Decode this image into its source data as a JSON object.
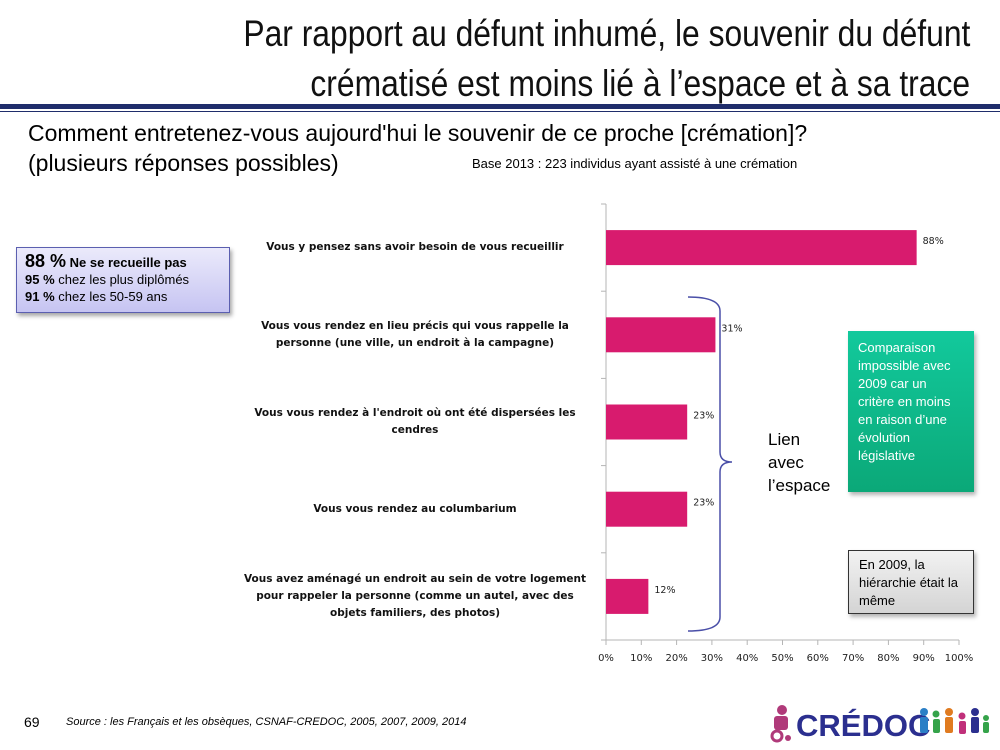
{
  "title": {
    "line1": "Par rapport au défunt inhumé, le souvenir du défunt",
    "line2": "crématisé est moins lié à l’espace et à sa trace"
  },
  "question": {
    "line1": "Comment entretenez-vous aujourd'hui le souvenir de ce proche [crémation]?",
    "line2": "(plusieurs réponses possibles)"
  },
  "base_note": "Base 2013 : 223 individus ayant assisté à une crémation",
  "stats_box": {
    "line1_value": "88 %",
    "line1_text": "Ne se recueille pas",
    "line2_value": "95 %",
    "line2_text": "chez les plus diplômés",
    "line3_value": "91 %",
    "line3_text": "chez les 50-59 ans"
  },
  "chart_data": {
    "type": "bar",
    "orientation": "horizontal",
    "categories": [
      "Vous y pensez sans avoir besoin de vous recueillir",
      "Vous vous rendez en lieu précis qui vous rappelle la personne (une ville, un endroit à la campagne)",
      "Vous vous rendez à l'endroit où ont été dispersées les cendres",
      "Vous vous rendez au columbarium",
      "Vous avez aménagé un endroit au sein de votre logement pour rappeler la personne (comme un autel, avec des objets familiers, des photos)"
    ],
    "category_lines": [
      [
        "Vous y pensez sans avoir besoin de vous recueillir"
      ],
      [
        "Vous vous rendez en lieu précis qui vous rappelle la",
        "personne (une ville, un endroit à la campagne)"
      ],
      [
        "Vous vous rendez à l'endroit où ont été dispersées les",
        "cendres"
      ],
      [
        "Vous vous rendez au columbarium"
      ],
      [
        "Vous avez aménagé un endroit au sein de votre logement",
        "pour rappeler la personne (comme un autel, avec des",
        "objets familiers, des photos)"
      ]
    ],
    "values": [
      88,
      31,
      23,
      23,
      12
    ],
    "value_labels": [
      "88%",
      "31%",
      "23%",
      "23%",
      "12%"
    ],
    "xlim": [
      0,
      100
    ],
    "ticks": [
      "0%",
      "10%",
      "20%",
      "30%",
      "40%",
      "50%",
      "60%",
      "70%",
      "80%",
      "90%",
      "100%"
    ],
    "bar_color": "#d81b6e",
    "grid": false
  },
  "annotations": {
    "lien": [
      "Lien",
      "avec",
      "l’espace"
    ],
    "green_box": "Comparaison impossible avec 2009 car un critère en moins en raison d’une évolution législative",
    "gray_box": "En 2009, la hiérarchie était la même",
    "brace_color": "#4a4fa8"
  },
  "footer": {
    "page_number": "69",
    "source": "Source : les Français et les obsèques, CSNAF-CREDOC, 2005, 2007, 2009, 2014",
    "logo_text": "CRÉDOC"
  }
}
